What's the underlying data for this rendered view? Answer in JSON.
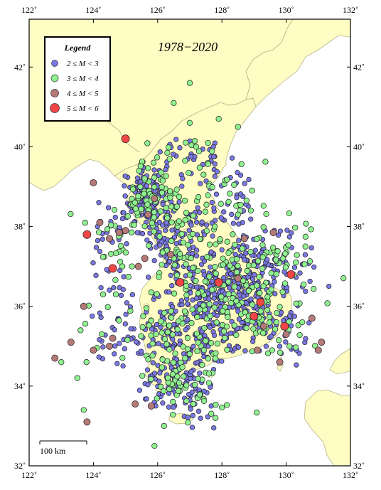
{
  "map": {
    "title": "1978−2020",
    "lon_range": [
      122,
      132
    ],
    "lat_range": [
      32,
      43.2
    ],
    "lon_ticks": [
      122,
      124,
      126,
      128,
      130,
      132
    ],
    "lat_ticks": [
      32,
      34,
      36,
      38,
      40,
      42
    ],
    "lon_tick_labels": [
      "122˚",
      "124˚",
      "126˚",
      "128˚",
      "130˚",
      "132˚"
    ],
    "lat_tick_labels": [
      "32˚",
      "34˚",
      "36˚",
      "38˚",
      "40˚",
      "42˚"
    ],
    "scale_bar_label": "100 km",
    "colors": {
      "sea": "#ffffff",
      "land": "#fffdc4",
      "border": "#b4b48c",
      "frame": "#000000"
    }
  },
  "legend": {
    "title": "Legend",
    "entries": [
      {
        "label": "2 ≤ M < 3",
        "color": "#7a78e4"
      },
      {
        "label": "3 ≤ M < 4",
        "color": "#8ff08f"
      },
      {
        "label": "4 ≤ M < 5",
        "color": "#b57a78"
      },
      {
        "label": "5 ≤ M < 6",
        "color": "#f04646"
      }
    ]
  },
  "quakes": {
    "m5": [
      [
        125.0,
        40.2
      ],
      [
        123.8,
        37.8
      ],
      [
        124.6,
        36.95
      ],
      [
        126.7,
        36.6
      ],
      [
        127.9,
        36.6
      ],
      [
        129.2,
        36.1
      ],
      [
        129.0,
        35.75
      ],
      [
        129.95,
        35.5
      ],
      [
        130.15,
        36.8
      ]
    ],
    "m4": [
      [
        124.0,
        39.1
      ],
      [
        124.2,
        38.1
      ],
      [
        124.5,
        37.7
      ],
      [
        124.8,
        37.85
      ],
      [
        125.0,
        37.9
      ],
      [
        125.7,
        38.3
      ],
      [
        125.9,
        38.7
      ],
      [
        125.6,
        37.2
      ],
      [
        125.4,
        37.0
      ],
      [
        126.4,
        37.3
      ],
      [
        123.7,
        36.0
      ],
      [
        122.8,
        34.7
      ],
      [
        123.3,
        35.1
      ],
      [
        124.0,
        34.9
      ],
      [
        124.5,
        35.0
      ],
      [
        124.6,
        35.2
      ],
      [
        125.8,
        33.5
      ],
      [
        125.3,
        33.55
      ],
      [
        123.8,
        33.1
      ],
      [
        128.7,
        37.7
      ],
      [
        129.6,
        37.85
      ],
      [
        128.5,
        36.7
      ],
      [
        129.3,
        35.5
      ],
      [
        129.1,
        34.9
      ],
      [
        129.8,
        34.6
      ],
      [
        130.8,
        35.7
      ],
      [
        131.1,
        35.1
      ],
      [
        131.0,
        34.9
      ],
      [
        130.0,
        35.3
      ]
    ],
    "m3_extra": [
      [
        127.0,
        41.6
      ],
      [
        126.5,
        41.1
      ],
      [
        127.9,
        40.7
      ],
      [
        128.5,
        40.5
      ],
      [
        127.0,
        40.6
      ],
      [
        127.2,
        40.0
      ],
      [
        125.2,
        37.0
      ],
      [
        124.9,
        37.0
      ],
      [
        124.3,
        36.3
      ],
      [
        124.7,
        36.3
      ],
      [
        123.6,
        35.4
      ],
      [
        123.0,
        34.6
      ],
      [
        123.5,
        34.2
      ],
      [
        123.7,
        33.4
      ],
      [
        125.9,
        32.5
      ],
      [
        126.2,
        33.0
      ],
      [
        127.8,
        33.2
      ],
      [
        129.7,
        35.6
      ],
      [
        130.5,
        35.6
      ],
      [
        130.6,
        37.5
      ],
      [
        130.3,
        37.1
      ],
      [
        129.9,
        37.2
      ],
      [
        128.9,
        38.4
      ],
      [
        128.5,
        38.3
      ],
      [
        126.6,
        38.5
      ],
      [
        126.8,
        37.6
      ]
    ]
  }
}
